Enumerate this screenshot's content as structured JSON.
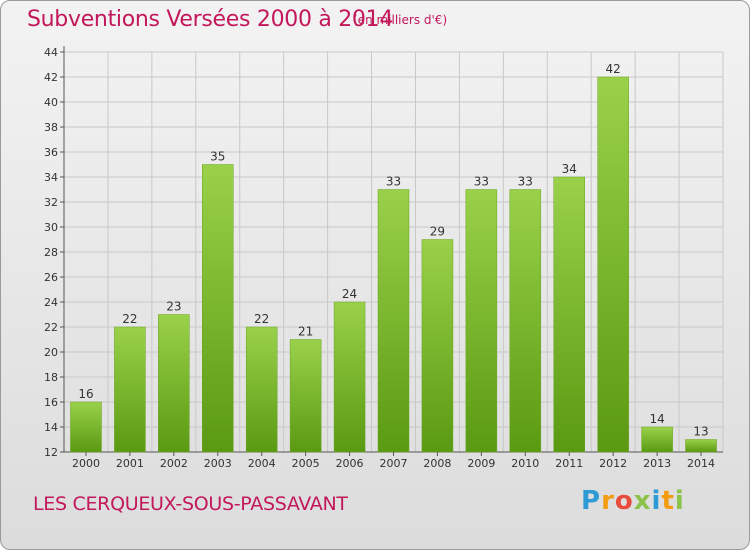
{
  "header": {
    "title": "Subventions Versées 2000 à 2014",
    "unit": "(en milliers d'€)"
  },
  "footer": {
    "place": "LES CERQUEUX-SOUS-PASSAVANT",
    "logo_letters": [
      "P",
      "r",
      "o",
      "x",
      "i",
      "t",
      "i"
    ],
    "logo_colors": [
      "#2e9ad6",
      "#f39c12",
      "#e74c3c",
      "#8bc34a",
      "#2e9ad6",
      "#f39c12",
      "#8bc34a"
    ]
  },
  "colors": {
    "bar_light": "#9ad14a",
    "bar_dark": "#5a9a12",
    "title": "#c2185b",
    "grid": "#c8c8c8"
  },
  "chart_data": {
    "type": "bar",
    "categories": [
      "2000",
      "2001",
      "2002",
      "2003",
      "2004",
      "2005",
      "2006",
      "2007",
      "2008",
      "2009",
      "2010",
      "2011",
      "2012",
      "2013",
      "2014"
    ],
    "values": [
      16,
      22,
      23,
      35,
      22,
      21,
      24,
      33,
      29,
      33,
      33,
      34,
      42,
      14,
      13
    ],
    "title": "Subventions Versées 2000 à 2014",
    "xlabel": "",
    "ylabel": "",
    "ylim": [
      12,
      44
    ],
    "yticks": [
      12,
      14,
      16,
      18,
      20,
      22,
      24,
      26,
      28,
      30,
      32,
      34,
      36,
      38,
      40,
      42,
      44
    ],
    "grid": true,
    "data_labels": true
  }
}
